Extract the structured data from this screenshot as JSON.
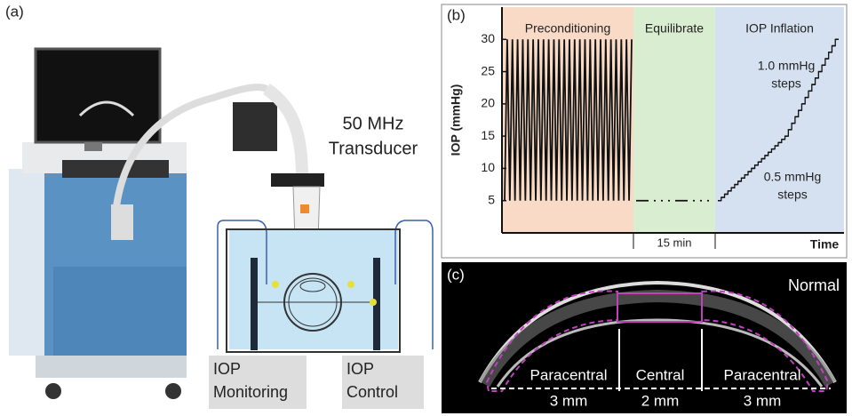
{
  "panel_a": {
    "label": "(a)",
    "transducer_label": [
      "50 MHz",
      "Transducer"
    ],
    "monitoring": [
      "IOP",
      "Monitoring"
    ],
    "control": [
      "IOP",
      "Control"
    ]
  },
  "chart_data": {
    "type": "line",
    "panel_label": "(b)",
    "y_label": "IOP (mmHg)",
    "x_label": "Time",
    "ylim": [
      0,
      35
    ],
    "yticks": [
      5,
      10,
      15,
      20,
      25,
      30
    ],
    "phases": [
      {
        "name": "Preconditioning",
        "color": "#f8dac6"
      },
      {
        "name": "Equilibrate",
        "color": "#d9edd0"
      },
      {
        "name": "IOP Inflation",
        "color": "#d5e1f0"
      }
    ],
    "duration_label": "15 min",
    "annotations": [
      {
        "lines": [
          "1.0 mmHg",
          "steps"
        ]
      },
      {
        "lines": [
          "0.5 mmHg",
          "steps"
        ]
      }
    ],
    "series": [
      {
        "color": "#111111",
        "style": "solid",
        "values": [
          5,
          30,
          5,
          30,
          5,
          30,
          5,
          30,
          5,
          30,
          5,
          30,
          5,
          30,
          5,
          30,
          5,
          30,
          5,
          30,
          5,
          30,
          5,
          30,
          5,
          30,
          5,
          30,
          5,
          30,
          5,
          30,
          5,
          30,
          5,
          30,
          5,
          30,
          5,
          30,
          5,
          30,
          5,
          30,
          5,
          30,
          5,
          30,
          5,
          30
        ]
      },
      {
        "color": "#111111",
        "style": "dashed",
        "values": [
          5,
          5
        ]
      },
      {
        "color": "#111111",
        "style": "step",
        "values": [
          5,
          5.5,
          6,
          6.5,
          7,
          7.5,
          8,
          8.5,
          9,
          9.5,
          10,
          10.5,
          11,
          11.5,
          12,
          12.5,
          13,
          13.5,
          14,
          14.5,
          15,
          16,
          17,
          18,
          19,
          20,
          21,
          22,
          23,
          24,
          25,
          26,
          27,
          28,
          29,
          30
        ]
      }
    ]
  },
  "panel_c": {
    "label": "(c)",
    "condition": "Normal",
    "regions": [
      {
        "name": "Paracentral",
        "size": "3 mm"
      },
      {
        "name": "Central",
        "size": "2 mm"
      },
      {
        "name": "Paracentral",
        "size": "3 mm"
      }
    ]
  }
}
